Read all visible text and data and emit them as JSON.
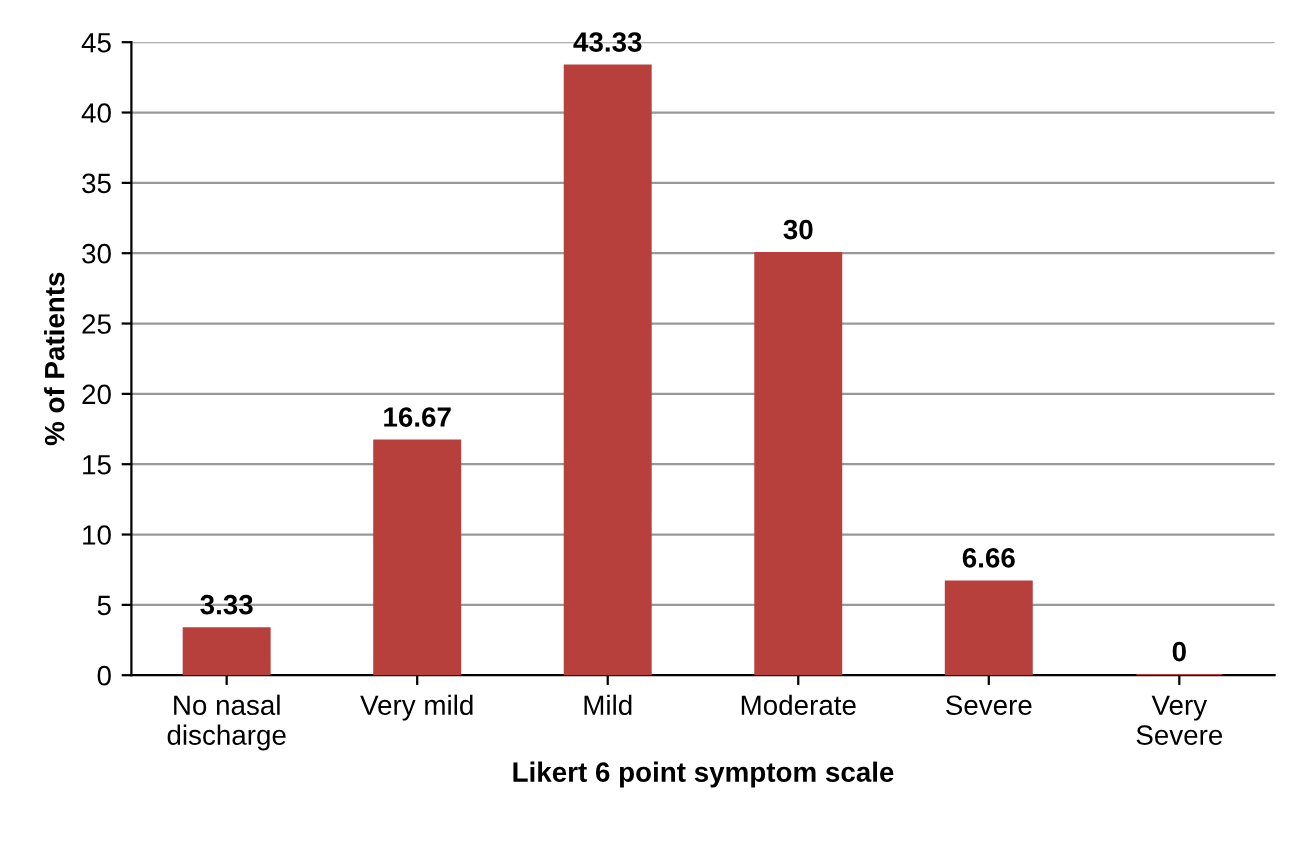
{
  "chart_data": {
    "type": "bar",
    "xlabel": "Likert 6 point symptom scale",
    "ylabel": "% of Patients",
    "categories": [
      "No nasal\ndischarge",
      "Very mild",
      "Mild",
      "Moderate",
      "Severe",
      "Very\nSevere"
    ],
    "values": [
      3.33,
      16.67,
      43.33,
      30,
      6.66,
      0
    ],
    "color": "#b8403c",
    "ylim": [
      0,
      45
    ],
    "yticks": [
      0,
      5,
      10,
      15,
      20,
      25,
      30,
      35,
      40,
      45
    ],
    "grid": "y",
    "data_labels": true
  }
}
